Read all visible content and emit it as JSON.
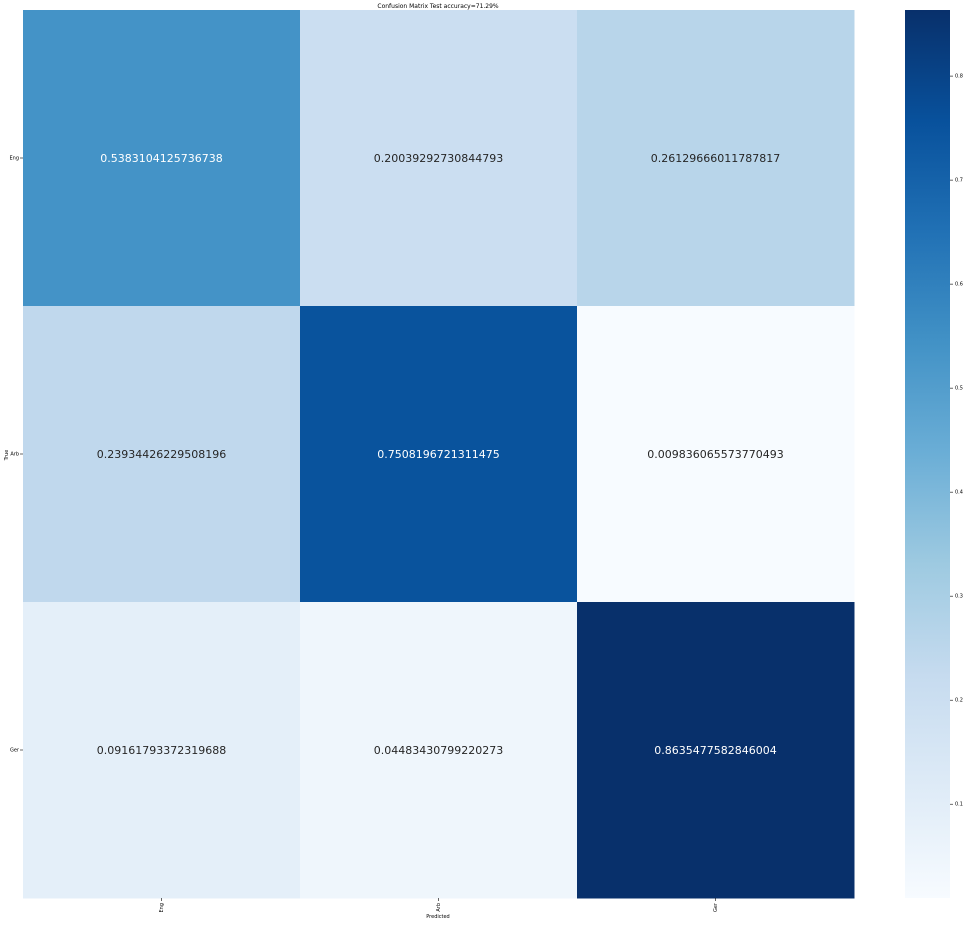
{
  "chart_data": {
    "type": "heatmap",
    "title": "Confusion Matrix Test accuracy=71.29%",
    "xlabel": "Predicted",
    "ylabel": "True",
    "x_categories": [
      "Eng",
      "Arb",
      "Ger"
    ],
    "y_categories": [
      "Eng",
      "Arb",
      "Ger"
    ],
    "values": [
      [
        0.5383104125736738,
        0.20039292730844793,
        0.26129666011787817
      ],
      [
        0.23934426229508196,
        0.7508196721311475,
        0.009836065573770493
      ],
      [
        0.09161793372319688,
        0.04483430799220273,
        0.8635477582846004
      ]
    ],
    "value_labels": [
      [
        "0.5383104125736738",
        "0.20039292730844793",
        "0.26129666011787817"
      ],
      [
        "0.23934426229508196",
        "0.7508196721311475",
        "0.009836065573770493"
      ],
      [
        "0.09161793372319688",
        "0.04483430799220273",
        "0.8635477582846004"
      ]
    ],
    "colormap": "Blues",
    "colorbar": {
      "range": [
        0.009836065573770493,
        0.8635477582846004
      ],
      "ticks": [
        0.1,
        0.2,
        0.3,
        0.4,
        0.5,
        0.6,
        0.7,
        0.8
      ],
      "tick_labels": [
        "0.1",
        "0.2",
        "0.3",
        "0.4",
        "0.5",
        "0.6",
        "0.7",
        "0.8"
      ]
    },
    "grid": false
  }
}
